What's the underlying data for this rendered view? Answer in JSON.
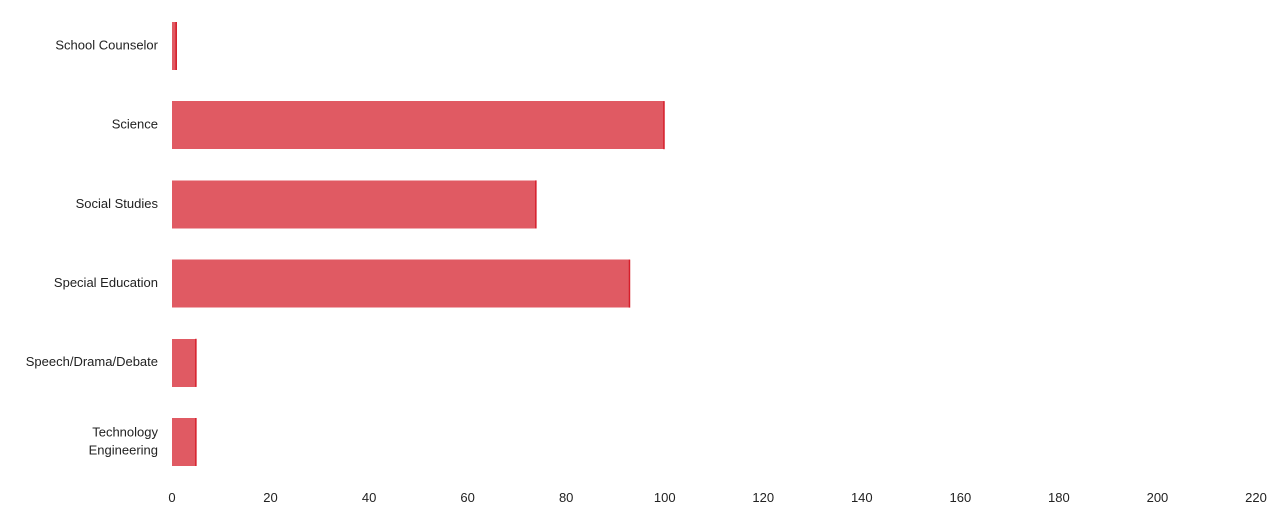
{
  "chart_data": {
    "type": "bar",
    "orientation": "horizontal",
    "categories": [
      [
        "School Counselor"
      ],
      [
        "Science"
      ],
      [
        "Social Studies"
      ],
      [
        "Special Education"
      ],
      [
        "Speech/Drama/Debate"
      ],
      [
        "Technology",
        "Engineering"
      ]
    ],
    "values": [
      1,
      100,
      74,
      93,
      5,
      5
    ],
    "xlim": [
      0,
      220
    ],
    "x_ticks": [
      0,
      20,
      40,
      60,
      80,
      100,
      120,
      140,
      160,
      180,
      200,
      220
    ],
    "grid": false,
    "title": "",
    "xlabel": "",
    "ylabel": ""
  },
  "colors": {
    "bar_fill": "#e05a63",
    "bar_edge": "#d61e2b",
    "text": "#222222"
  }
}
